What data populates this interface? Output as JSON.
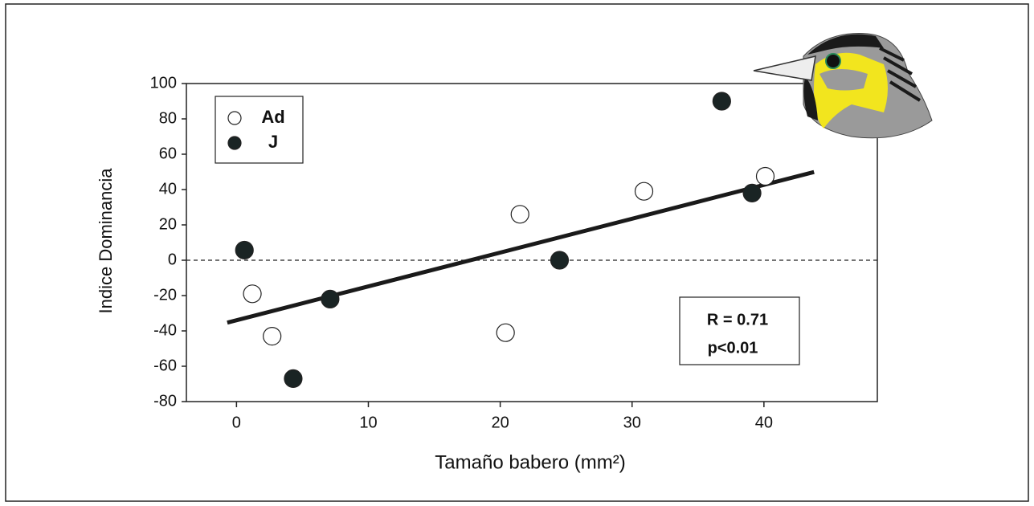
{
  "chart_data": {
    "type": "scatter",
    "xlabel": "Tamaño babero (mm²)",
    "ylabel": "Indice Dominancia",
    "xlim": [
      -3.8,
      48.6
    ],
    "ylim": [
      -80,
      100
    ],
    "xticks": [
      0,
      10,
      20,
      30,
      40
    ],
    "yticks": [
      -80,
      -60,
      -40,
      -20,
      0,
      20,
      40,
      60,
      80,
      100
    ],
    "series": [
      {
        "name": "Ad",
        "color": "#ffffff",
        "x": [
          1.2,
          2.7,
          20.4,
          21.5,
          30.9,
          40.1
        ],
        "values": [
          -19,
          -43,
          -41,
          26,
          39,
          47.5
        ]
      },
      {
        "name": "J",
        "color": "#1a2424",
        "x": [
          0.6,
          4.3,
          7.1,
          24.5,
          36.8,
          39.1
        ],
        "values": [
          5.7,
          -67,
          -22,
          0,
          90,
          38
        ]
      }
    ],
    "fit": {
      "x": [
        -0.7,
        43.8
      ],
      "values": [
        -35.3,
        49.9
      ]
    },
    "hline": 0,
    "annotations": [
      "R = 0.71",
      "p<0.01"
    ]
  }
}
